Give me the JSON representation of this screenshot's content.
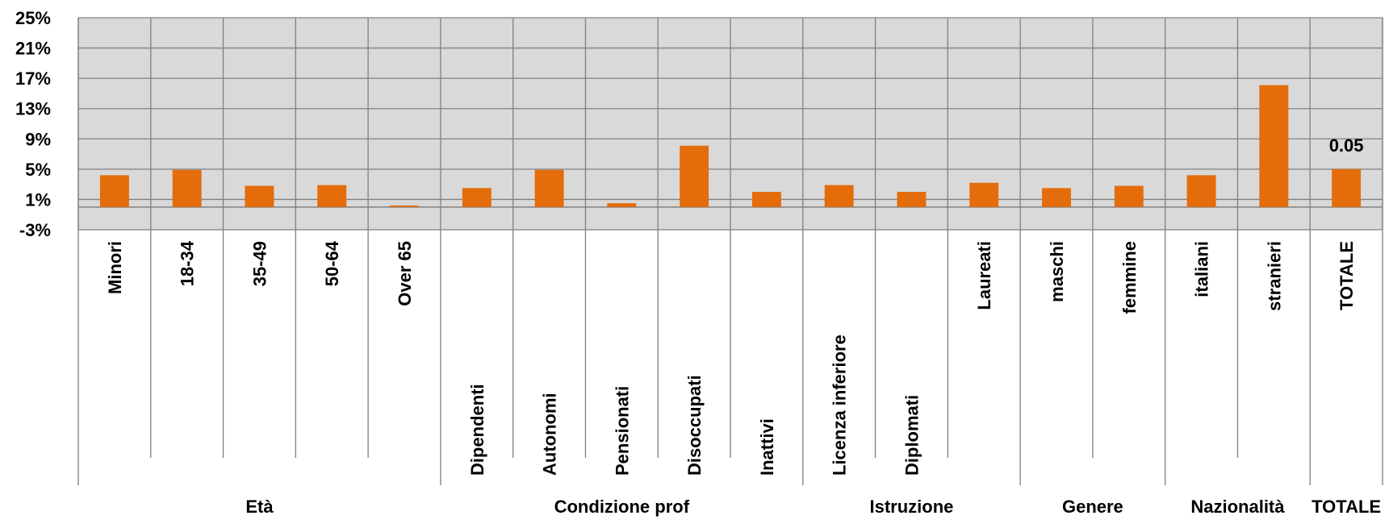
{
  "chart_data": {
    "type": "bar",
    "title": "",
    "xlabel": "",
    "ylabel": "",
    "ylim": [
      -0.03,
      0.25
    ],
    "y_ticks": [
      -0.03,
      0.01,
      0.05,
      0.09,
      0.13,
      0.17,
      0.21,
      0.25
    ],
    "y_tick_labels": [
      "-3%",
      "1%",
      "5%",
      "9%",
      "13%",
      "17%",
      "21%",
      "25%"
    ],
    "grid": true,
    "legend": "none",
    "bar_color": "#E46C0A",
    "plot_background": "#D9D9D9",
    "categories": [
      {
        "label": "Minori",
        "group": "Età",
        "value": 0.042
      },
      {
        "label": "18-34",
        "group": "Età",
        "value": 0.049
      },
      {
        "label": "35-49",
        "group": "Età",
        "value": 0.028
      },
      {
        "label": "50-64",
        "group": "Età",
        "value": 0.029
      },
      {
        "label": "Over 65",
        "group": "Età",
        "value": 0.002
      },
      {
        "label": "Dipendenti",
        "group": "Condizione prof",
        "value": 0.025
      },
      {
        "label": "Autonomi",
        "group": "Condizione prof",
        "value": 0.049
      },
      {
        "label": "Pensionati",
        "group": "Condizione prof",
        "value": 0.005
      },
      {
        "label": "Disoccupati",
        "group": "Condizione prof",
        "value": 0.081
      },
      {
        "label": "Inattivi",
        "group": "Condizione prof",
        "value": 0.02
      },
      {
        "label": "Licenza inferiore",
        "group": "Istruzione",
        "value": 0.029
      },
      {
        "label": "Diplomati",
        "group": "Istruzione",
        "value": 0.02
      },
      {
        "label": "Laureati",
        "group": "Istruzione",
        "value": 0.032
      },
      {
        "label": "maschi",
        "group": "Genere",
        "value": 0.025
      },
      {
        "label": "femmine",
        "group": "Genere",
        "value": 0.028
      },
      {
        "label": "italiani",
        "group": "Nazionalità",
        "value": 0.042
      },
      {
        "label": "stranieri",
        "group": "Nazionalità",
        "value": 0.161
      },
      {
        "label": "TOTALE",
        "group": "TOTALE",
        "value": 0.05,
        "data_label": "0.05"
      }
    ],
    "groups": [
      {
        "name": "Età",
        "count": 5
      },
      {
        "name": "Condizione prof",
        "count": 5
      },
      {
        "name": "Istruzione",
        "count": 3
      },
      {
        "name": "Genere",
        "count": 2
      },
      {
        "name": "Nazionalità",
        "count": 2
      },
      {
        "name": "TOTALE",
        "count": 1
      }
    ]
  }
}
